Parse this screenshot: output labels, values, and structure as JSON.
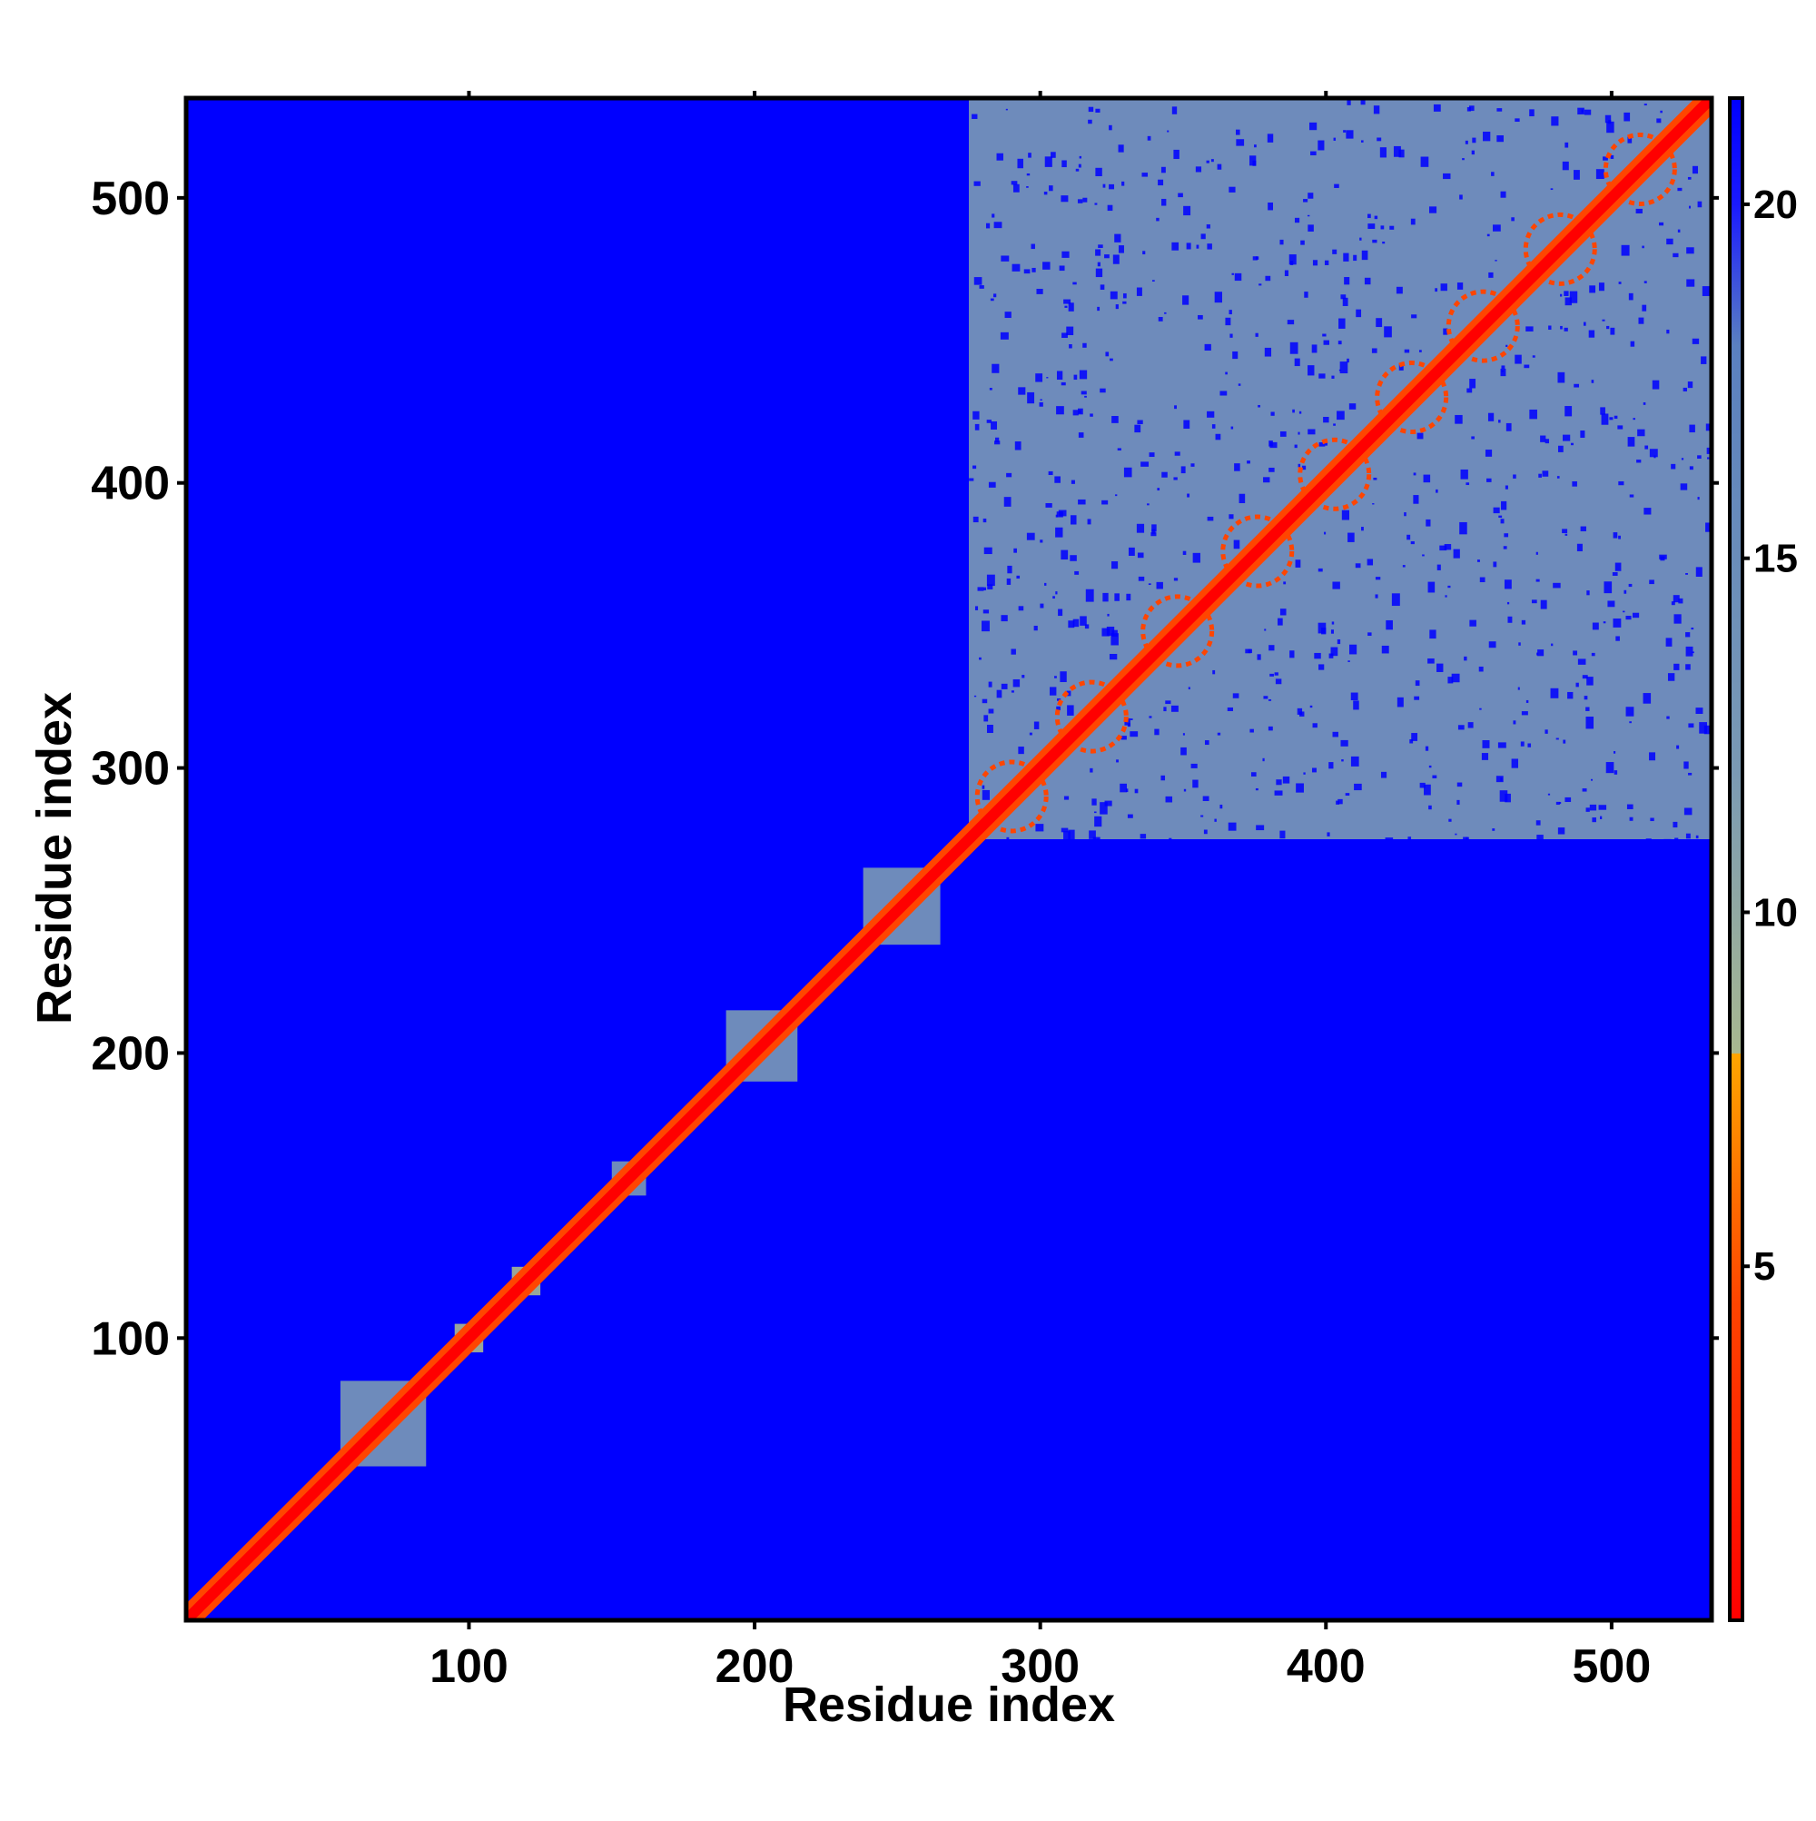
{
  "chart_data": {
    "type": "heatmap",
    "title": "",
    "xlabel": "Residue index",
    "ylabel": "Residue index",
    "xlim": [
      1,
      535
    ],
    "ylim": [
      1,
      535
    ],
    "x_ticks": [
      "100",
      "200",
      "300",
      "400",
      "500"
    ],
    "y_ticks": [
      "100",
      "200",
      "300",
      "400",
      "500"
    ],
    "x_tick_values": [
      100,
      200,
      300,
      400,
      500
    ],
    "y_tick_values": [
      100,
      200,
      300,
      400,
      500
    ],
    "colorbar": {
      "range": [
        0,
        21.5
      ],
      "ticks": [
        "5",
        "10",
        "15",
        "20"
      ],
      "tick_values": [
        5,
        10,
        15,
        20
      ],
      "stops": [
        {
          "value": 0,
          "color": "#ff0000"
        },
        {
          "value": 4.5,
          "color": "#ff4500"
        },
        {
          "value": 8,
          "color": "#ffa500"
        },
        {
          "value": 8.01,
          "color": "#a8b890"
        },
        {
          "value": 12,
          "color": "#7a9ab4"
        },
        {
          "value": 18,
          "color": "#5a80c0"
        },
        {
          "value": 20,
          "color": "#1a1aff"
        },
        {
          "value": 21.5,
          "color": "#0000ff"
        }
      ]
    },
    "background_value": 21.5,
    "background_color": "#0000ff",
    "diagonal_value": 0,
    "domains": [
      {
        "start": 55,
        "end": 85,
        "value": 14
      },
      {
        "start": 95,
        "end": 105,
        "value": 12
      },
      {
        "start": 115,
        "end": 125,
        "value": 12
      },
      {
        "start": 150,
        "end": 162,
        "value": 13
      },
      {
        "start": 190,
        "end": 215,
        "value": 15
      },
      {
        "start": 238,
        "end": 265,
        "value": 16
      },
      {
        "start": 275,
        "end": 535,
        "value": 18
      }
    ],
    "helix_repeats": [
      290,
      318,
      348,
      376,
      403,
      430,
      455,
      482,
      510
    ]
  }
}
